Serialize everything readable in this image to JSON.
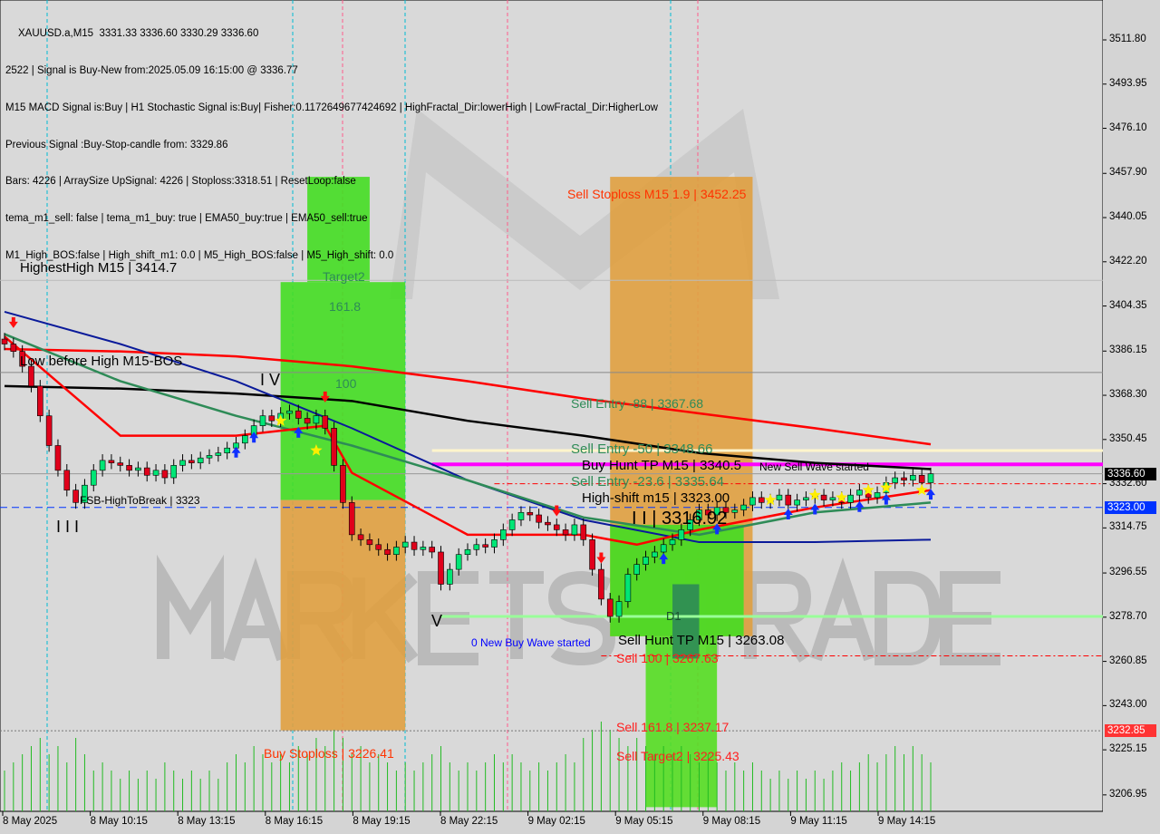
{
  "header": {
    "title": "XAUUSD.a,M15  3331.33 3336.60 3330.29 3336.60",
    "lines": [
      "2522 | Signal is Buy-New from:2025.05.09 16:15:00 @ 3336.77",
      "M15 MACD Signal is:Buy | H1 Stochastic Signal is:Buy| Fisher:0.1172649677424692 | HighFractal_Dir:lowerHigh | LowFractal_Dir:HigherLow",
      "Previous Signal :Buy-Stop-candle from: 3329.86",
      "Bars: 4226 | ArraySize UpSignal: 4226 | Stoploss:3318.51 | ResetLoop:false",
      "tema_m1_sell: false | tema_m1_buy: true | EMA50_buy:true | EMA50_sell:true",
      "M1_High_BOS:false | High_shift_m1: 0.0 | M5_High_BOS:false | M5_High_shift: 0.0"
    ]
  },
  "watermark": "MARKETS TRADE",
  "colors": {
    "bull": "#00e676",
    "bear": "#e0001b",
    "ema_fast": "#ff0000",
    "ema_slow": "#ff0000",
    "ema_green": "#2e8b57",
    "ema_blue": "#0a1a9a",
    "ema_black": "#000000",
    "buy_zone": "#44dd22",
    "sell_zone": "#e0a040",
    "magenta": "#ff00ff"
  },
  "chart_data": {
    "type": "candlestick",
    "symbol": "XAUUSD.a",
    "timeframe": "M15",
    "ylim": [
      3199,
      3527
    ],
    "y_ticks": [
      "3511.80",
      "3493.95",
      "3476.10",
      "3457.90",
      "3440.05",
      "3422.20",
      "3404.35",
      "3386.15",
      "3368.30",
      "3350.45",
      "3332.60",
      "3314.75",
      "3296.55",
      "3278.70",
      "3260.85",
      "3243.00",
      "3225.15",
      "3206.95"
    ],
    "x_ticks": [
      "8 May 2025",
      "8 May 10:15",
      "8 May 13:15",
      "8 May 16:15",
      "8 May 19:15",
      "8 May 22:15",
      "9 May 02:15",
      "9 May 05:15",
      "9 May 08:15",
      "9 May 11:15",
      "9 May 14:15"
    ],
    "open_first": 3391,
    "closes": [
      3389,
      3386,
      3380,
      3372,
      3360,
      3348,
      3338,
      3330,
      3325,
      3332,
      3338,
      3342,
      3341,
      3340,
      3338,
      3339,
      3336,
      3338,
      3335,
      3340,
      3342,
      3341,
      3343,
      3344,
      3345,
      3347,
      3349,
      3352,
      3356,
      3360,
      3358,
      3361,
      3362,
      3359,
      3357,
      3360,
      3355,
      3340,
      3325,
      3312,
      3310,
      3308,
      3306,
      3304,
      3307,
      3309,
      3306,
      3307,
      3305,
      3292,
      3298,
      3304,
      3306,
      3308,
      3307,
      3310,
      3314,
      3318,
      3321,
      3320,
      3317,
      3316,
      3314,
      3312,
      3316,
      3310,
      3298,
      3286,
      3279,
      3285,
      3296,
      3300,
      3303,
      3305,
      3308,
      3310,
      3314,
      3318,
      3322,
      3320,
      3323,
      3321,
      3322,
      3324,
      3327,
      3325,
      3326,
      3328,
      3324,
      3326,
      3327,
      3328,
      3326,
      3327,
      3325,
      3328,
      3330,
      3327,
      3329,
      3333,
      3335,
      3334,
      3336,
      3333,
      3336.6
    ],
    "indicators": [
      {
        "color": "#ff0000",
        "width": 2.5,
        "points": [
          [
            0,
            3387
          ],
          [
            13,
            3386
          ],
          [
            26,
            3384
          ],
          [
            39,
            3380
          ],
          [
            52,
            3374
          ],
          [
            65,
            3367
          ],
          [
            78,
            3361
          ],
          [
            91,
            3355
          ],
          [
            104,
            3348.5
          ]
        ]
      },
      {
        "color": "#000000",
        "width": 2.5,
        "points": [
          [
            0,
            3372
          ],
          [
            13,
            3371
          ],
          [
            26,
            3369
          ],
          [
            39,
            3366
          ],
          [
            52,
            3358
          ],
          [
            65,
            3352
          ],
          [
            78,
            3345
          ],
          [
            91,
            3341
          ],
          [
            104,
            3338.5
          ]
        ]
      },
      {
        "color": "#0a1a9a",
        "width": 2,
        "points": [
          [
            0,
            3402
          ],
          [
            13,
            3389
          ],
          [
            26,
            3374
          ],
          [
            39,
            3355
          ],
          [
            52,
            3334
          ],
          [
            65,
            3318
          ],
          [
            78,
            3309
          ],
          [
            91,
            3309
          ],
          [
            104,
            3310
          ]
        ]
      },
      {
        "color": "#2e8b57",
        "width": 2.5,
        "points": [
          [
            0,
            3393
          ],
          [
            13,
            3374
          ],
          [
            26,
            3360
          ],
          [
            39,
            3348
          ],
          [
            52,
            3334
          ],
          [
            65,
            3319
          ],
          [
            78,
            3312
          ],
          [
            91,
            3321
          ],
          [
            104,
            3325
          ]
        ]
      },
      {
        "color": "#ff0000",
        "width": 2.5,
        "points": [
          [
            0,
            3392
          ],
          [
            13,
            3352
          ],
          [
            26,
            3352
          ],
          [
            36,
            3356
          ],
          [
            39,
            3337
          ],
          [
            52,
            3312
          ],
          [
            65,
            3312
          ],
          [
            71,
            3308
          ],
          [
            78,
            3314
          ],
          [
            91,
            3323
          ],
          [
            104,
            3330
          ]
        ]
      }
    ],
    "zones": [
      {
        "color": "#44dd22",
        "from": 31,
        "to": 45,
        "top": 3414,
        "bottom": 3326
      },
      {
        "color": "#44dd22",
        "from": 34,
        "to": 41,
        "top": 3456.5,
        "bottom": 3414
      },
      {
        "color": "#e0a040",
        "from": 31,
        "to": 45,
        "top": 3326,
        "bottom": 3233
      },
      {
        "color": "#e0a040",
        "from": 68,
        "to": 84,
        "top": 3456.5,
        "bottom": 3271
      },
      {
        "color": "#44dd22",
        "from": 68,
        "to": 83,
        "top": 3316,
        "bottom": 3271
      },
      {
        "color": "#55dd22",
        "from": 72,
        "to": 80,
        "top": 3271,
        "bottom": 3202
      },
      {
        "color": "#2e8b57",
        "from": 75,
        "to": 78,
        "top": 3292,
        "bottom": 3262
      }
    ],
    "levels": [
      {
        "price": 3414.7,
        "color": "#bbbbbb",
        "dash": "",
        "from": 0
      },
      {
        "price": 3377.5,
        "color": "#888888",
        "dash": "",
        "from": 0
      },
      {
        "price": 3346,
        "color": "#fff5cc",
        "dash": "",
        "from": 48,
        "width": 3
      },
      {
        "price": 3340.4,
        "color": "#ff00ff",
        "dash": "",
        "from": 48,
        "width": 4
      },
      {
        "price": 3336.6,
        "color": "#999999",
        "dash": "",
        "from": 0
      },
      {
        "price": 3332.6,
        "color": "#ff0000",
        "dash": "6 3 2 3",
        "from": 55
      },
      {
        "price": 3323.0,
        "color": "#0033ff",
        "dash": "8 5",
        "from": 0
      },
      {
        "price": 3279,
        "color": "#99ff99",
        "dash": "",
        "from": 49,
        "width": 3
      },
      {
        "price": 3263.08,
        "color": "#ff0000",
        "dash": "6 3 2 3",
        "from": 67
      },
      {
        "price": 3232.85,
        "color": "#777777",
        "dash": "2 2",
        "from": 0
      }
    ],
    "price_tags": [
      {
        "value": "3336.60",
        "bg": "#000000",
        "fg": "#ffffff",
        "price": 3336.6
      },
      {
        "value": "3323.00",
        "bg": "#0033ff",
        "fg": "#ffffff",
        "price": 3323.0
      },
      {
        "value": "3232.85",
        "bg": "#ff3333",
        "fg": "#ffffff",
        "price": 3232.85
      }
    ],
    "annotations": {
      "highest_high": "HighestHigh   M15 | 3414.7",
      "low_before_high": "Low before High   M15-BOS",
      "fsb": "FSB-HighToBreak | 3323",
      "wave_iii": "I I I",
      "wave_iv": "I V",
      "wave_v": "V",
      "target2": "Target2",
      "t1618": "161.8",
      "t100": "100",
      "buy_stoploss": "Buy Stoploss | 3226.41",
      "sell_stoploss": "Sell Stoploss M15 1.9 | 3452.25",
      "sell_entry_88": "Sell Entry -88 | 3367.68",
      "sell_entry_50": "Sell Entry -50 | 3348.66",
      "buy_hunt": "Buy Hunt TP M15 | 3340.5",
      "new_sell_wave": "New Sell Wave started",
      "sell_entry_236": "Sell Entry -23.6 | 3335.64",
      "high_shift": "High-shift m15 | 3323.00",
      "ii": "I I | 3316.92",
      "new_buy_wave": "0 New Buy Wave started",
      "sell_hunt": "Sell Hunt TP M15 | 3263.08",
      "sell_100": "Sell 100 | 3267.63",
      "sell_1618": "Sell 161.8 | 3237.17",
      "sell_target2": "Sell Target2 | 3225.43",
      "d1": "D1"
    },
    "volumes": [
      5,
      6,
      7,
      8,
      9,
      7,
      8,
      6,
      9,
      7,
      5,
      6,
      5,
      4,
      5,
      4,
      5,
      4,
      6,
      5,
      4,
      5,
      4,
      5,
      4,
      6,
      7,
      6,
      8,
      7,
      6,
      7,
      6,
      8,
      7,
      9,
      8,
      10,
      9,
      7,
      8,
      6,
      7,
      6,
      5,
      6,
      5,
      6,
      7,
      8,
      6,
      5,
      6,
      5,
      6,
      7,
      6,
      7,
      6,
      5,
      6,
      5,
      6,
      7,
      6,
      9,
      10,
      11,
      10,
      9,
      8,
      9,
      8,
      7,
      8,
      7,
      8,
      7,
      6,
      7,
      6,
      5,
      6,
      5,
      6,
      5,
      4,
      5,
      4,
      5,
      4,
      5,
      4,
      5,
      6,
      5,
      6,
      7,
      6,
      7,
      8,
      7,
      8,
      7,
      6
    ]
  }
}
